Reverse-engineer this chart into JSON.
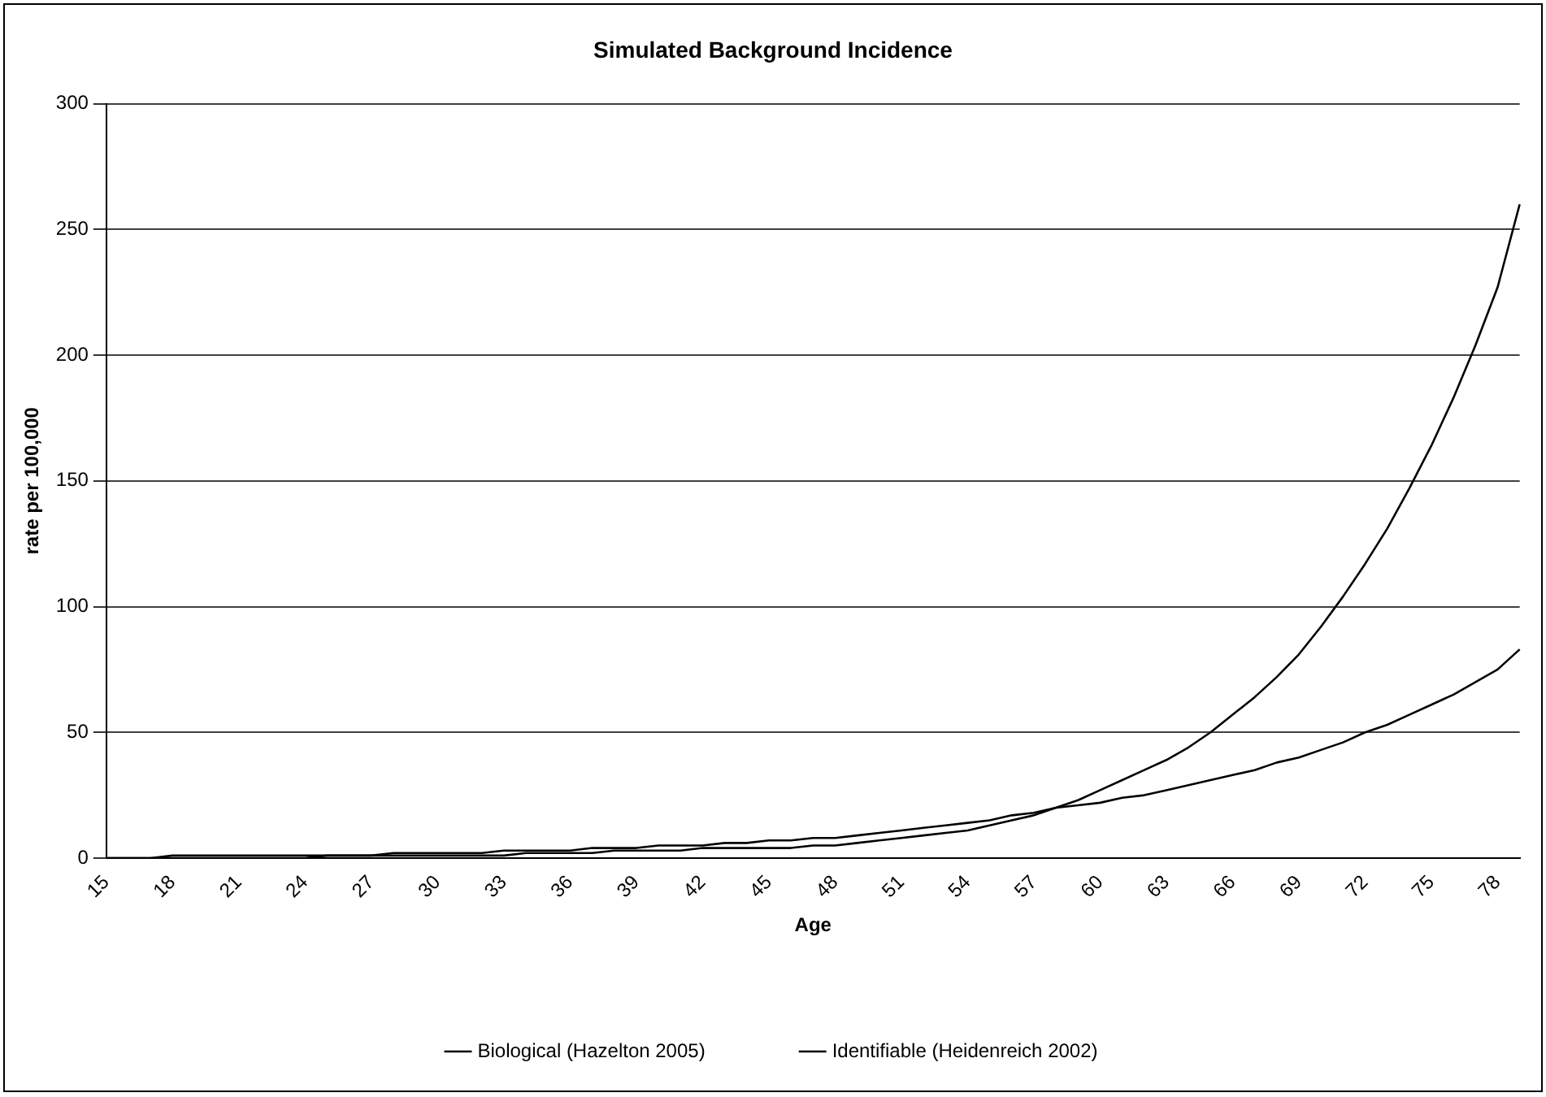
{
  "chart_data": {
    "type": "line",
    "title": "Simulated Background Incidence",
    "xlabel": "Age",
    "ylabel": "rate per 100,000",
    "categories": [
      "15",
      null,
      null,
      "18",
      null,
      null,
      "21",
      null,
      null,
      "24",
      null,
      null,
      "27",
      null,
      null,
      "30",
      null,
      null,
      "33",
      null,
      null,
      "36",
      null,
      null,
      "39",
      null,
      null,
      "42",
      null,
      null,
      "45",
      null,
      null,
      "48",
      null,
      null,
      "51",
      null,
      null,
      "54",
      null,
      null,
      "57",
      null,
      null,
      "60",
      null,
      null,
      "63",
      null,
      null,
      "66",
      null,
      null,
      "69",
      null,
      null,
      "72",
      null,
      null,
      "75",
      null,
      null,
      "78",
      null
    ],
    "series": [
      {
        "name": "Biological (Hazelton 2005)",
        "color": "#000000",
        "values": [
          0,
          0,
          0,
          0,
          0,
          0,
          0,
          0,
          0,
          0,
          1,
          1,
          1,
          1,
          1,
          1,
          1,
          1,
          1,
          2,
          2,
          2,
          2,
          3,
          3,
          3,
          3,
          4,
          4,
          4,
          4,
          4,
          5,
          5,
          6,
          7,
          8,
          9,
          10,
          11,
          13,
          15,
          17,
          20,
          23,
          27,
          31,
          35,
          39,
          44,
          50,
          57,
          64,
          72,
          81,
          92,
          104,
          117,
          131,
          147,
          164,
          183,
          204,
          227,
          260
        ]
      },
      {
        "name": "Identifiable (Heidenreich 2002)",
        "color": "#000000",
        "values": [
          0,
          0,
          0,
          1,
          1,
          1,
          1,
          1,
          1,
          1,
          1,
          1,
          1,
          2,
          2,
          2,
          2,
          2,
          3,
          3,
          3,
          3,
          4,
          4,
          4,
          5,
          5,
          5,
          6,
          6,
          7,
          7,
          8,
          8,
          9,
          10,
          11,
          12,
          13,
          14,
          15,
          17,
          18,
          20,
          21,
          22,
          24,
          25,
          27,
          29,
          31,
          33,
          35,
          38,
          40,
          43,
          46,
          50,
          53,
          57,
          61,
          65,
          70,
          75,
          83
        ]
      }
    ],
    "ylim": [
      0,
      300
    ],
    "yticks": [
      0,
      50,
      100,
      150,
      200,
      250,
      300
    ],
    "grid": "y",
    "legend": "bottom",
    "marker": "none",
    "line_style": "solid"
  }
}
